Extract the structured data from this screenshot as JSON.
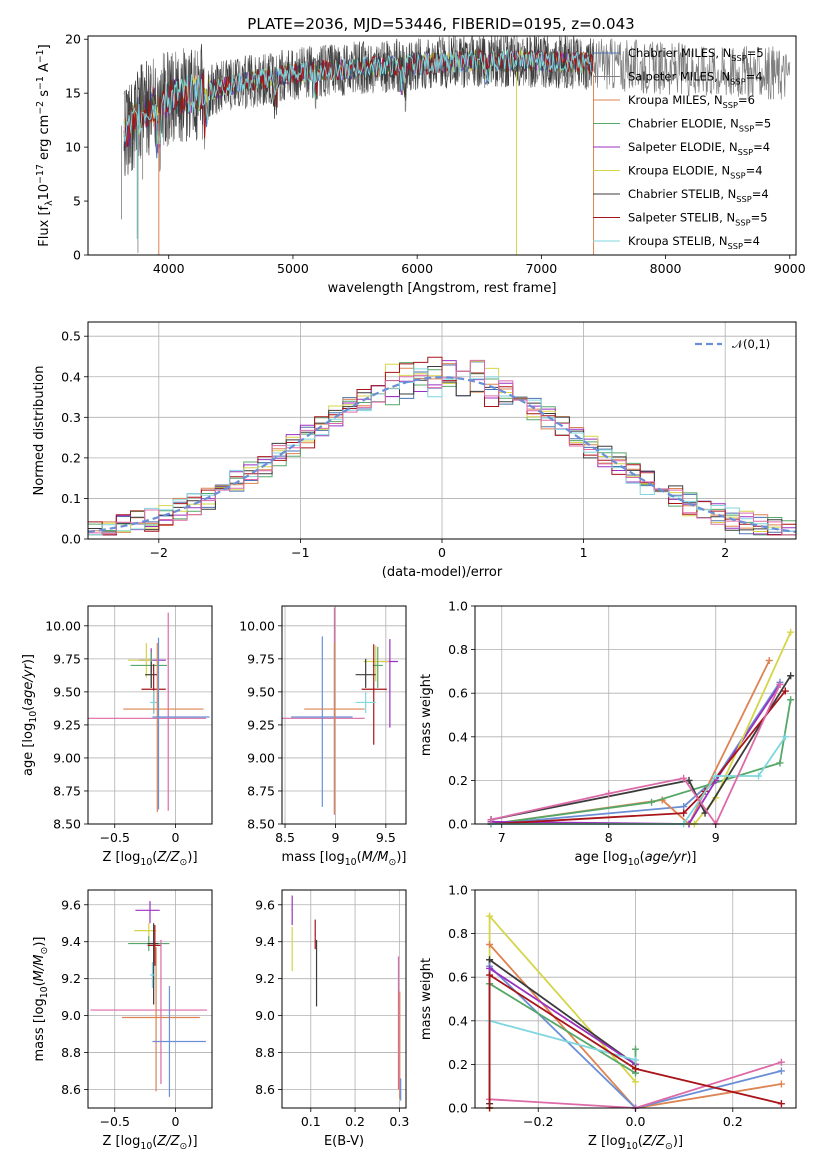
{
  "figure": {
    "title": "PLATE=2036, MJD=53446, FIBERID=0195, z=0.043",
    "colors": [
      "#4c72b0",
      "#7f7f7f",
      "#dd8452",
      "#55a868",
      "#9b30c0",
      "#d5d54a",
      "#3b3b3b",
      "#a8141a",
      "#7fd6de"
    ]
  },
  "chart_data": [
    {
      "id": "spectrum",
      "type": "line",
      "title": "PLATE=2036, MJD=53446, FIBERID=0195, z=0.043",
      "xlabel": "wavelength [Angstrom, rest frame]",
      "ylabel": "Flux [f_λ10^-17 erg cm^-2 s^-1 A^-1]",
      "xlim": [
        3350,
        9050
      ],
      "ylim": [
        0,
        20.3
      ],
      "xticks": [
        4000,
        5000,
        6000,
        7000,
        8000,
        9000
      ],
      "yticks": [
        0,
        5,
        10,
        15,
        20
      ],
      "legend_position": "top-right",
      "legend": [
        {
          "name": "Chabrier MILES, N_SSP=5",
          "color": "#4c72b0"
        },
        {
          "name": "Salpeter MILES, N_SSP=4",
          "color": "#7f7f7f"
        },
        {
          "name": "Kroupa MILES, N_SSP=6",
          "color": "#dd8452"
        },
        {
          "name": "Chabrier ELODIE, N_SSP=5",
          "color": "#55a868"
        },
        {
          "name": "Salpeter ELODIE, N_SSP=4",
          "color": "#9b30c0"
        },
        {
          "name": "Kroupa ELODIE, N_SSP=4",
          "color": "#d5d54a"
        },
        {
          "name": "Chabrier STELIB, N_SSP=4",
          "color": "#3b3b3b"
        },
        {
          "name": "Salpeter STELIB, N_SSP=5",
          "color": "#a8141a"
        },
        {
          "name": "Kroupa STELIB, N_SSP=4",
          "color": "#7fd6de"
        }
      ],
      "envelope": [
        [
          3600,
          11
        ],
        [
          3700,
          12
        ],
        [
          3800,
          13.5
        ],
        [
          4000,
          14.6
        ],
        [
          4200,
          15
        ],
        [
          4400,
          15.5
        ],
        [
          4700,
          16.2
        ],
        [
          5000,
          16.8
        ],
        [
          5500,
          17.3
        ],
        [
          6000,
          17.7
        ],
        [
          6500,
          18
        ],
        [
          7000,
          18
        ],
        [
          7500,
          17.7
        ],
        [
          8000,
          17.3
        ],
        [
          8500,
          17
        ],
        [
          9000,
          16.8
        ]
      ],
      "noise_amplitude": 2.5,
      "dropouts": [
        {
          "x": 3920,
          "color": "#dd8452"
        },
        {
          "x": 6800,
          "color": "#d5d54a"
        },
        {
          "x": 7420,
          "color": "#dd8452"
        }
      ]
    },
    {
      "id": "residuals",
      "type": "histogram",
      "xlabel": "(data-model)/error",
      "ylabel": "Normed distribution",
      "xlim": [
        -2.5,
        2.5
      ],
      "ylim": [
        0,
        0.535
      ],
      "xticks": [
        -2,
        -1,
        0,
        1,
        2
      ],
      "yticks": [
        0.0,
        0.1,
        0.2,
        0.3,
        0.4,
        0.5
      ],
      "bin_width": 0.1,
      "legend_position": "top-right",
      "reference_curve": {
        "name": "𝒩(0,1)",
        "color": "#6a8fd6",
        "mean": 0,
        "sigma": 1
      }
    },
    {
      "id": "age_vs_Z",
      "type": "errorbar",
      "xlabel": "Z [log10(Z/Z⊙)]",
      "ylabel": "age [log10(age/yr)]",
      "xlim": [
        -0.72,
        0.3
      ],
      "ylim": [
        8.5,
        10.15
      ],
      "xticks": [
        -0.5,
        0.0
      ],
      "yticks": [
        8.5,
        8.75,
        9.0,
        9.25,
        9.5,
        9.75,
        10.0
      ],
      "points": [
        {
          "x": -0.06,
          "y": 9.3,
          "xerr": [
            0.66,
            0.31
          ],
          "yerr": [
            0.7,
            0.8
          ],
          "color": "#dd6aa8"
        },
        {
          "x": -0.2,
          "y": 9.74,
          "xerr": [
            0.1,
            0.12
          ],
          "yerr": [
            0.09,
            0.09
          ],
          "color": "#9b30c0"
        },
        {
          "x": -0.24,
          "y": 9.74,
          "xerr": [
            0.15,
            0.05
          ],
          "yerr": [
            0.13,
            0.13
          ],
          "color": "#d5d54a"
        },
        {
          "x": -0.2,
          "y": 9.7,
          "xerr": [
            0.17,
            0.13
          ],
          "yerr": [
            0.17,
            0.1
          ],
          "color": "#55a868"
        },
        {
          "x": -0.2,
          "y": 9.63,
          "xerr": [
            0.05,
            0.05
          ],
          "yerr": [
            0.1,
            0.1
          ],
          "color": "#3b3b3b"
        },
        {
          "x": -0.18,
          "y": 9.52,
          "xerr": [
            0.1,
            0.1
          ],
          "yerr": [
            0.18,
            0.19
          ],
          "color": "#a8141a"
        },
        {
          "x": -0.18,
          "y": 9.42,
          "xerr": [
            0.03,
            0.03
          ],
          "yerr": [
            0.09,
            0.09
          ],
          "color": "#7fd6de"
        },
        {
          "x": -0.15,
          "y": 9.37,
          "xerr": [
            0.28,
            0.38
          ],
          "yerr": [
            0.78,
            0.5
          ],
          "color": "#dd8452"
        },
        {
          "x": -0.14,
          "y": 9.31,
          "xerr": [
            0.05,
            0.42
          ],
          "yerr": [
            0.7,
            0.6
          ],
          "color": "#6a8fd6"
        }
      ]
    },
    {
      "id": "age_vs_mass",
      "type": "errorbar",
      "xlabel": "mass [log10(M/M⊙)]",
      "ylabel": "",
      "xlim": [
        8.47,
        9.7
      ],
      "ylim": [
        8.5,
        10.15
      ],
      "xticks": [
        8.5,
        9.0,
        9.5
      ],
      "yticks": [
        8.5,
        8.75,
        9.0,
        9.25,
        9.5,
        9.75,
        10.0
      ],
      "points": [
        {
          "x": 8.99,
          "y": 9.3,
          "xerr": [
            0.52,
            0.3
          ],
          "yerr": [
            0.73,
            0.84
          ],
          "color": "#dd6aa8"
        },
        {
          "x": 8.87,
          "y": 9.31,
          "xerr": [
            0.31,
            0.3
          ],
          "yerr": [
            0.68,
            0.61
          ],
          "color": "#6a8fd6"
        },
        {
          "x": 8.99,
          "y": 9.37,
          "xerr": [
            0.3,
            0.3
          ],
          "yerr": [
            0.79,
            0.5
          ],
          "color": "#dd8452"
        },
        {
          "x": 9.54,
          "y": 9.73,
          "xerr": [
            0.09,
            0.08
          ],
          "yerr": [
            0.5,
            0.17
          ],
          "color": "#9b30c0"
        },
        {
          "x": 9.4,
          "y": 9.73,
          "xerr": [
            0.12,
            0.13
          ],
          "yerr": [
            0.15,
            0.12
          ],
          "color": "#d5d54a"
        },
        {
          "x": 9.42,
          "y": 9.7,
          "xerr": [
            0.05,
            0.05
          ],
          "yerr": [
            0.17,
            0.14
          ],
          "color": "#55a868"
        },
        {
          "x": 9.3,
          "y": 9.63,
          "xerr": [
            0.1,
            0.1
          ],
          "yerr": [
            0.1,
            0.12
          ],
          "color": "#3b3b3b"
        },
        {
          "x": 9.38,
          "y": 9.52,
          "xerr": [
            0.12,
            0.13
          ],
          "yerr": [
            0.42,
            0.34
          ],
          "color": "#a8141a"
        },
        {
          "x": 9.3,
          "y": 9.42,
          "xerr": [
            0.1,
            0.1
          ],
          "yerr": [
            0.08,
            0.08
          ],
          "color": "#7fd6de"
        }
      ]
    },
    {
      "id": "mass_weight_vs_age",
      "type": "line",
      "xlabel": "age [log10(age/yr)]",
      "ylabel": "mass weight",
      "xlim": [
        6.75,
        9.75
      ],
      "ylim": [
        0,
        1.0
      ],
      "xticks": [
        7,
        8,
        9
      ],
      "yticks": [
        0.0,
        0.2,
        0.4,
        0.6,
        0.8,
        1.0
      ],
      "series": [
        {
          "color": "#6a8fd6",
          "x": [
            6.9,
            8.7,
            9.0,
            9.6
          ],
          "y": [
            0.0,
            0.08,
            0.21,
            0.65
          ]
        },
        {
          "color": "#dd8452",
          "x": [
            6.9,
            8.5,
            8.75,
            9.5
          ],
          "y": [
            0.0,
            0.11,
            0.0,
            0.75
          ]
        },
        {
          "color": "#55a868",
          "x": [
            6.9,
            8.4,
            9.6,
            9.7
          ],
          "y": [
            0.0,
            0.1,
            0.28,
            0.57
          ]
        },
        {
          "color": "#9b30c0",
          "x": [
            6.9,
            8.75,
            9.0,
            9.6
          ],
          "y": [
            0.01,
            0.0,
            0.2,
            0.64
          ]
        },
        {
          "color": "#d5d54a",
          "x": [
            6.9,
            8.8,
            9.0,
            9.7
          ],
          "y": [
            0.0,
            0.0,
            0.12,
            0.88
          ]
        },
        {
          "color": "#3b3b3b",
          "x": [
            6.9,
            8.75,
            8.9,
            9.7
          ],
          "y": [
            0.02,
            0.2,
            0.05,
            0.68
          ]
        },
        {
          "color": "#a8141a",
          "x": [
            6.9,
            8.7,
            8.9,
            9.65
          ],
          "y": [
            0.0,
            0.05,
            0.15,
            0.61
          ]
        },
        {
          "color": "#7fd6de",
          "x": [
            6.9,
            8.7,
            9.0,
            9.4,
            9.65
          ],
          "y": [
            0.0,
            0.0,
            0.22,
            0.22,
            0.4
          ]
        },
        {
          "color": "#dd6aa8",
          "x": [
            6.9,
            8.0,
            8.7,
            9.0,
            9.6
          ],
          "y": [
            0.02,
            0.14,
            0.21,
            0.0,
            0.64
          ]
        }
      ]
    },
    {
      "id": "mass_vs_Z",
      "type": "errorbar",
      "xlabel": "Z [log10(Z/Z⊙)]",
      "ylabel": "mass [log10(M/M⊙)]",
      "xlim": [
        -0.72,
        0.3
      ],
      "ylim": [
        8.5,
        9.68
      ],
      "xticks": [
        -0.5,
        0.0
      ],
      "yticks": [
        8.6,
        8.8,
        9.0,
        9.2,
        9.4,
        9.6
      ],
      "points": [
        {
          "x": -0.21,
          "y": 9.57,
          "xerr": [
            0.12,
            0.08
          ],
          "yerr": [
            0.07,
            0.05
          ],
          "color": "#9b30c0"
        },
        {
          "x": -0.22,
          "y": 9.46,
          "xerr": [
            0.12,
            0.06
          ],
          "yerr": [
            0.04,
            0.04
          ],
          "color": "#d5d54a"
        },
        {
          "x": -0.22,
          "y": 9.39,
          "xerr": [
            0.17,
            0.17
          ],
          "yerr": [
            0.04,
            0.04
          ],
          "color": "#55a868"
        },
        {
          "x": -0.18,
          "y": 9.39,
          "xerr": [
            0.05,
            0.04
          ],
          "yerr": [
            0.33,
            0.11
          ],
          "color": "#3b3b3b"
        },
        {
          "x": -0.17,
          "y": 9.38,
          "xerr": [
            0.06,
            0.05
          ],
          "yerr": [
            0.11,
            0.11
          ],
          "color": "#a8141a"
        },
        {
          "x": -0.19,
          "y": 9.22,
          "xerr": [
            0.02,
            0.02
          ],
          "yerr": [
            0.07,
            0.07
          ],
          "color": "#7fd6de"
        },
        {
          "x": -0.12,
          "y": 9.03,
          "xerr": [
            0.58,
            0.38
          ],
          "yerr": [
            0.4,
            0.38
          ],
          "color": "#dd6aa8"
        },
        {
          "x": -0.16,
          "y": 8.99,
          "xerr": [
            0.28,
            0.36
          ],
          "yerr": [
            0.4,
            0.38
          ],
          "color": "#dd8452"
        },
        {
          "x": -0.05,
          "y": 8.86,
          "xerr": [
            0.14,
            0.3
          ],
          "yerr": [
            0.3,
            0.3
          ],
          "color": "#6a8fd6"
        }
      ]
    },
    {
      "id": "mass_vs_EBV",
      "type": "errorbar",
      "xlabel": "E(B-V)",
      "ylabel": "",
      "xlim": [
        0.035,
        0.315
      ],
      "ylim": [
        8.5,
        9.68
      ],
      "xticks": [
        0.1,
        0.2,
        0.3
      ],
      "yticks": [
        8.6,
        8.8,
        9.0,
        9.2,
        9.4,
        9.6
      ],
      "points": [
        {
          "x": 0.058,
          "y": 9.57,
          "xerr": [
            0.001,
            0.001
          ],
          "yerr": [
            0.08,
            0.08
          ],
          "color": "#9b30c0"
        },
        {
          "x": 0.058,
          "y": 9.36,
          "xerr": [
            0.001,
            0.001
          ],
          "yerr": [
            0.12,
            0.12
          ],
          "color": "#d5d54a"
        },
        {
          "x": 0.11,
          "y": 9.44,
          "xerr": [
            0.001,
            0.001
          ],
          "yerr": [
            0.08,
            0.08
          ],
          "color": "#a8141a"
        },
        {
          "x": 0.113,
          "y": 9.35,
          "xerr": [
            0.001,
            0.001
          ],
          "yerr": [
            0.3,
            0.06
          ],
          "color": "#3b3b3b"
        },
        {
          "x": 0.298,
          "y": 9.0,
          "xerr": [
            0.001,
            0.001
          ],
          "yerr": [
            0.4,
            0.32
          ],
          "color": "#dd6aa8"
        },
        {
          "x": 0.301,
          "y": 8.85,
          "xerr": [
            0.001,
            0.001
          ],
          "yerr": [
            0.3,
            0.28
          ],
          "color": "#dd8452"
        },
        {
          "x": 0.303,
          "y": 8.6,
          "xerr": [
            0.001,
            0.001
          ],
          "yerr": [
            0.06,
            0.06
          ],
          "color": "#6a8fd6"
        }
      ]
    },
    {
      "id": "mass_weight_vs_Z",
      "type": "line",
      "xlabel": "Z [log10(Z/Z⊙)]",
      "ylabel": "mass weight",
      "xlim": [
        -0.33,
        0.33
      ],
      "ylim": [
        0,
        1.0
      ],
      "xticks": [
        -0.2,
        0.0,
        0.2
      ],
      "yticks": [
        0.0,
        0.2,
        0.4,
        0.6,
        0.8,
        1.0
      ],
      "series": [
        {
          "color": "#d5d54a",
          "x": [
            -0.3,
            -0.3,
            0.0
          ],
          "y": [
            0.0,
            0.88,
            0.12
          ]
        },
        {
          "color": "#dd8452",
          "x": [
            -0.3,
            0.0,
            0.3
          ],
          "y": [
            0.75,
            0.0,
            0.11
          ]
        },
        {
          "color": "#3b3b3b",
          "x": [
            -0.3,
            -0.3,
            0.0
          ],
          "y": [
            0.02,
            0.68,
            0.2
          ]
        },
        {
          "color": "#6a8fd6",
          "x": [
            -0.3,
            0.0,
            0.3
          ],
          "y": [
            0.65,
            0.0,
            0.17
          ]
        },
        {
          "color": "#9b30c0",
          "x": [
            -0.3,
            0.0
          ],
          "y": [
            0.64,
            0.2
          ]
        },
        {
          "color": "#55a868",
          "x": [
            -0.3,
            0.0,
            0.0
          ],
          "y": [
            0.57,
            0.16,
            0.27
          ]
        },
        {
          "color": "#7fd6de",
          "x": [
            -0.3,
            0.0
          ],
          "y": [
            0.4,
            0.22
          ]
        },
        {
          "color": "#dd6aa8",
          "x": [
            -0.3,
            0.0,
            0.3
          ],
          "y": [
            0.04,
            0.0,
            0.21
          ]
        },
        {
          "color": "#a8141a",
          "x": [
            -0.3,
            -0.3,
            0.0,
            0.3
          ],
          "y": [
            0.0,
            0.61,
            0.18,
            0.02
          ]
        }
      ]
    }
  ]
}
